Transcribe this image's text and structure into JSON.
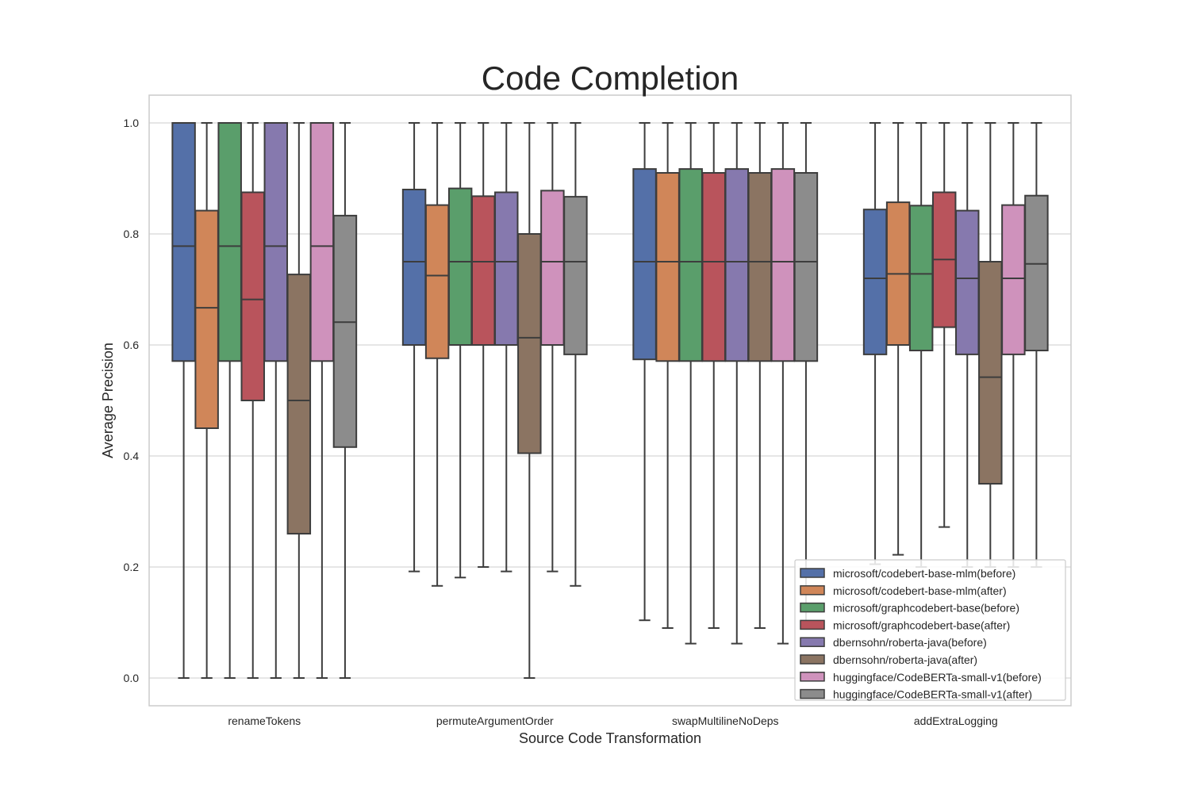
{
  "chart_data": {
    "type": "box",
    "title": "Code Completion",
    "xlabel": "Source Code Transformation",
    "ylabel": "Average Precision",
    "ylim": [
      -0.05,
      1.05
    ],
    "yticks": [
      "0.0",
      "0.2",
      "0.4",
      "0.6",
      "0.8",
      "1.0"
    ],
    "grid": true,
    "legend_position": "lower-right",
    "categories": [
      "renameTokens",
      "permuteArgumentOrder",
      "swapMultilineNoDeps",
      "addExtraLogging"
    ],
    "series": [
      {
        "name": "microsoft/codebert-base-mlm(before)",
        "color": "#5470a8",
        "boxes": [
          {
            "min": 0.0,
            "q1": 0.571,
            "median": 0.778,
            "q3": 1.0,
            "max": 1.0
          },
          {
            "min": 0.192,
            "q1": 0.6,
            "median": 0.75,
            "q3": 0.88,
            "max": 1.0
          },
          {
            "min": 0.104,
            "q1": 0.574,
            "median": 0.75,
            "q3": 0.917,
            "max": 1.0
          },
          {
            "min": 0.205,
            "q1": 0.583,
            "median": 0.72,
            "q3": 0.844,
            "max": 1.0
          }
        ]
      },
      {
        "name": "microsoft/codebert-base-mlm(after)",
        "color": "#d08659",
        "boxes": [
          {
            "min": 0.0,
            "q1": 0.45,
            "median": 0.667,
            "q3": 0.842,
            "max": 1.0
          },
          {
            "min": 0.166,
            "q1": 0.576,
            "median": 0.725,
            "q3": 0.852,
            "max": 1.0
          },
          {
            "min": 0.09,
            "q1": 0.571,
            "median": 0.75,
            "q3": 0.91,
            "max": 1.0
          },
          {
            "min": 0.222,
            "q1": 0.6,
            "median": 0.728,
            "q3": 0.857,
            "max": 1.0
          }
        ]
      },
      {
        "name": "microsoft/graphcodebert-base(before)",
        "color": "#5a9e6b",
        "boxes": [
          {
            "min": 0.0,
            "q1": 0.571,
            "median": 0.778,
            "q3": 1.0,
            "max": 1.0
          },
          {
            "min": 0.181,
            "q1": 0.6,
            "median": 0.75,
            "q3": 0.882,
            "max": 1.0
          },
          {
            "min": 0.062,
            "q1": 0.571,
            "median": 0.75,
            "q3": 0.917,
            "max": 1.0
          },
          {
            "min": 0.2,
            "q1": 0.59,
            "median": 0.728,
            "q3": 0.851,
            "max": 1.0
          }
        ]
      },
      {
        "name": "microsoft/graphcodebert-base(after)",
        "color": "#b9545c",
        "boxes": [
          {
            "min": 0.0,
            "q1": 0.5,
            "median": 0.682,
            "q3": 0.875,
            "max": 1.0
          },
          {
            "min": 0.2,
            "q1": 0.6,
            "median": 0.75,
            "q3": 0.868,
            "max": 1.0
          },
          {
            "min": 0.09,
            "q1": 0.571,
            "median": 0.75,
            "q3": 0.91,
            "max": 1.0
          },
          {
            "min": 0.272,
            "q1": 0.632,
            "median": 0.754,
            "q3": 0.875,
            "max": 1.0
          }
        ]
      },
      {
        "name": "dbernsohn/roberta-java(before)",
        "color": "#8679ae",
        "boxes": [
          {
            "min": 0.0,
            "q1": 0.571,
            "median": 0.778,
            "q3": 1.0,
            "max": 1.0
          },
          {
            "min": 0.192,
            "q1": 0.6,
            "median": 0.75,
            "q3": 0.875,
            "max": 1.0
          },
          {
            "min": 0.062,
            "q1": 0.571,
            "median": 0.75,
            "q3": 0.917,
            "max": 1.0
          },
          {
            "min": 0.2,
            "q1": 0.583,
            "median": 0.72,
            "q3": 0.842,
            "max": 1.0
          }
        ]
      },
      {
        "name": "dbernsohn/roberta-java(after)",
        "color": "#8b7462",
        "boxes": [
          {
            "min": 0.0,
            "q1": 0.26,
            "median": 0.5,
            "q3": 0.727,
            "max": 1.0
          },
          {
            "min": 0.0,
            "q1": 0.405,
            "median": 0.613,
            "q3": 0.8,
            "max": 1.0
          },
          {
            "min": 0.09,
            "q1": 0.571,
            "median": 0.75,
            "q3": 0.91,
            "max": 1.0
          },
          {
            "min": 0.2,
            "q1": 0.35,
            "median": 0.542,
            "q3": 0.75,
            "max": 1.0
          }
        ]
      },
      {
        "name": "huggingface/CodeBERTa-small-v1(before)",
        "color": "#cf92bc",
        "boxes": [
          {
            "min": 0.0,
            "q1": 0.571,
            "median": 0.778,
            "q3": 1.0,
            "max": 1.0
          },
          {
            "min": 0.192,
            "q1": 0.6,
            "median": 0.75,
            "q3": 0.878,
            "max": 1.0
          },
          {
            "min": 0.062,
            "q1": 0.571,
            "median": 0.75,
            "q3": 0.917,
            "max": 1.0
          },
          {
            "min": 0.2,
            "q1": 0.583,
            "median": 0.72,
            "q3": 0.852,
            "max": 1.0
          }
        ]
      },
      {
        "name": "huggingface/CodeBERTa-small-v1(after)",
        "color": "#8c8c8c",
        "boxes": [
          {
            "min": 0.0,
            "q1": 0.416,
            "median": 0.641,
            "q3": 0.833,
            "max": 1.0
          },
          {
            "min": 0.166,
            "q1": 0.583,
            "median": 0.75,
            "q3": 0.867,
            "max": 1.0
          },
          {
            "min": 0.09,
            "q1": 0.571,
            "median": 0.75,
            "q3": 0.91,
            "max": 1.0
          },
          {
            "min": 0.2,
            "q1": 0.59,
            "median": 0.746,
            "q3": 0.869,
            "max": 1.0
          }
        ]
      }
    ]
  }
}
